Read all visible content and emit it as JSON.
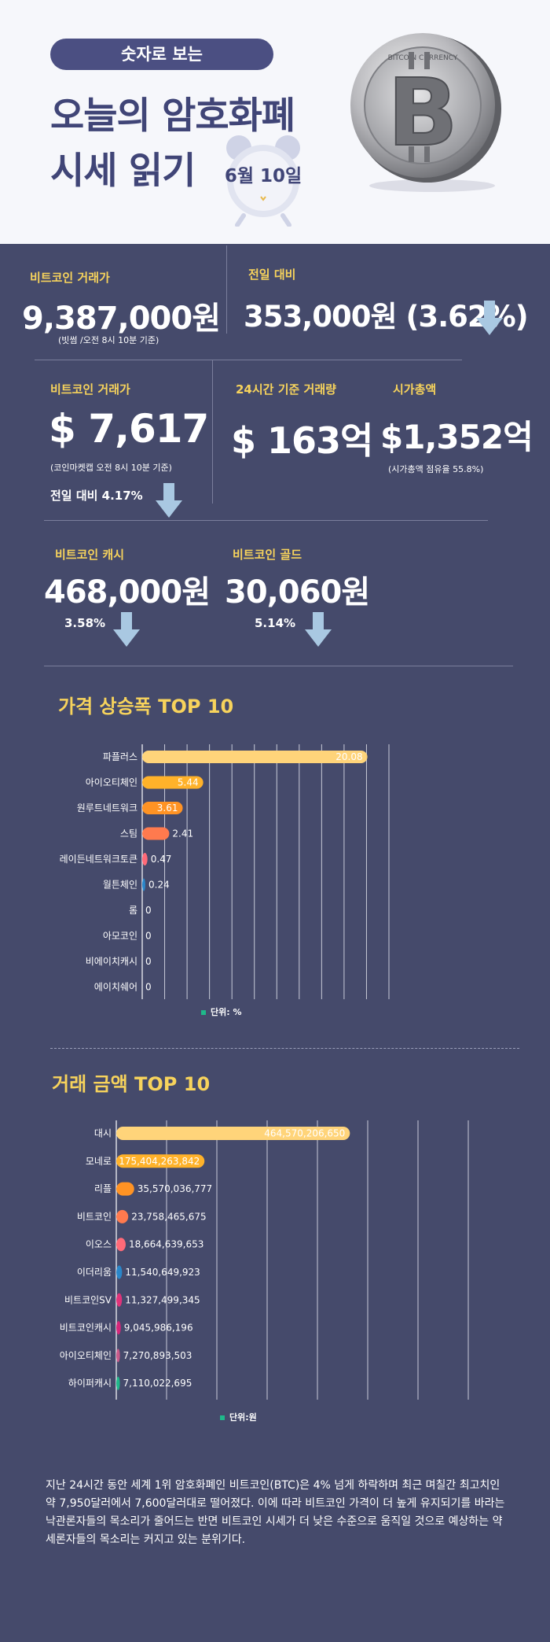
{
  "header": {
    "badge": "숫자로 보는",
    "title_line1": "오늘의 암호화폐",
    "title_line2": "시세 읽기",
    "date": "6월 10일",
    "coin_ring_text": "BITCOIN CURRENCY"
  },
  "stats": {
    "btc_krw": {
      "label": "비트코인 거래가",
      "value": "9,387,000원",
      "note": "(빗썸 /오전 8시 10분 기준)"
    },
    "btc_change": {
      "label": "전일 대비",
      "value": "353,000원 (3.62%)",
      "direction": "down"
    },
    "btc_usd": {
      "label": "비트코인 거래가",
      "value": "$ 7,617",
      "note": "(코인마켓캡 오전 8시 10분 기준)",
      "change": "전일 대비 4.17%",
      "direction": "down"
    },
    "volume_24h": {
      "label": "24시간 기준 거래량",
      "value": "$ 163억"
    },
    "market_cap": {
      "label": "시가총액",
      "value": "$1,352억",
      "note": "(시가총액 점유율 55.8%)"
    },
    "btc_cash": {
      "label": "비트코인 캐시",
      "value": "468,000원",
      "change": "3.58%",
      "direction": "down"
    },
    "btc_gold": {
      "label": "비트코인 골드",
      "value": "30,060원",
      "change": "5.14%",
      "direction": "down"
    }
  },
  "colors": {
    "background": "#454a6b",
    "header_bg": "#f6f7fb",
    "accent_yellow": "#f7d35c",
    "arrow": "#a9c8e2",
    "bars": [
      "#ffd47a",
      "#ffb22a",
      "#ff9324",
      "#ff7a4e",
      "#ff6a78",
      "#2a86c9",
      "#e0337a",
      "#d4277a",
      "#c85a8a",
      "#1fb88a"
    ]
  },
  "chart_data": [
    {
      "type": "bar",
      "orientation": "horizontal",
      "title": "가격 상승폭 TOP 10",
      "categories": [
        "파플러스",
        "아이오티체인",
        "원루트네트워크",
        "스팀",
        "레이든네트워크토큰",
        "월튼체인",
        "롬",
        "아모코인",
        "비에이치캐시",
        "에이치쉐어"
      ],
      "values": [
        20.08,
        5.44,
        3.61,
        2.41,
        0.47,
        0.24,
        0,
        0,
        0,
        0
      ],
      "labels": [
        "20.08",
        "5.44",
        "3.61",
        "2.41",
        "0.47",
        "0.24",
        "0",
        "0",
        "0",
        "0"
      ],
      "xlim": [
        0,
        22
      ],
      "unit": "단위: %",
      "grid": true
    },
    {
      "type": "bar",
      "orientation": "horizontal",
      "title": "거래 금액 TOP 10",
      "categories": [
        "대시",
        "모네로",
        "리플",
        "비트코인",
        "이오스",
        "이더리움",
        "비트코인SV",
        "비트코인캐시",
        "아이오티체인",
        "하이퍼캐시"
      ],
      "values": [
        464570206650,
        175404263842,
        35570036777,
        23758465675,
        18664639653,
        11540649923,
        11327499345,
        9045986196,
        7270893503,
        7110022695
      ],
      "labels": [
        "464,570,206,650",
        "175,404,263,842",
        "35,570,036,777",
        "23,758,465,675",
        "18,664,639,653",
        "11,540,649,923",
        "11,327,499,345",
        "9,045,986,196",
        "7,270,893,503",
        "7,110,022,695"
      ],
      "xlim": [
        0,
        700000000000
      ],
      "unit": "단위:원",
      "grid": true
    }
  ],
  "summary": "지난 24시간 동안 세계 1위 암호화폐인 비트코인(BTC)은 4% 넘게 하락하며 최근 며칠간 최고치인 약 7,950달러에서 7,600달러대로 떨어졌다. 이에 따라 비트코인 가격이 더 높게 유지되기를 바라는 낙관론자들의 목소리가 줄어드는 반면 비트코인 시세가 더 낮은 수준으로 움직일 것으로 예상하는 약세론자들의 목소리는 커지고 있는 분위기다."
}
